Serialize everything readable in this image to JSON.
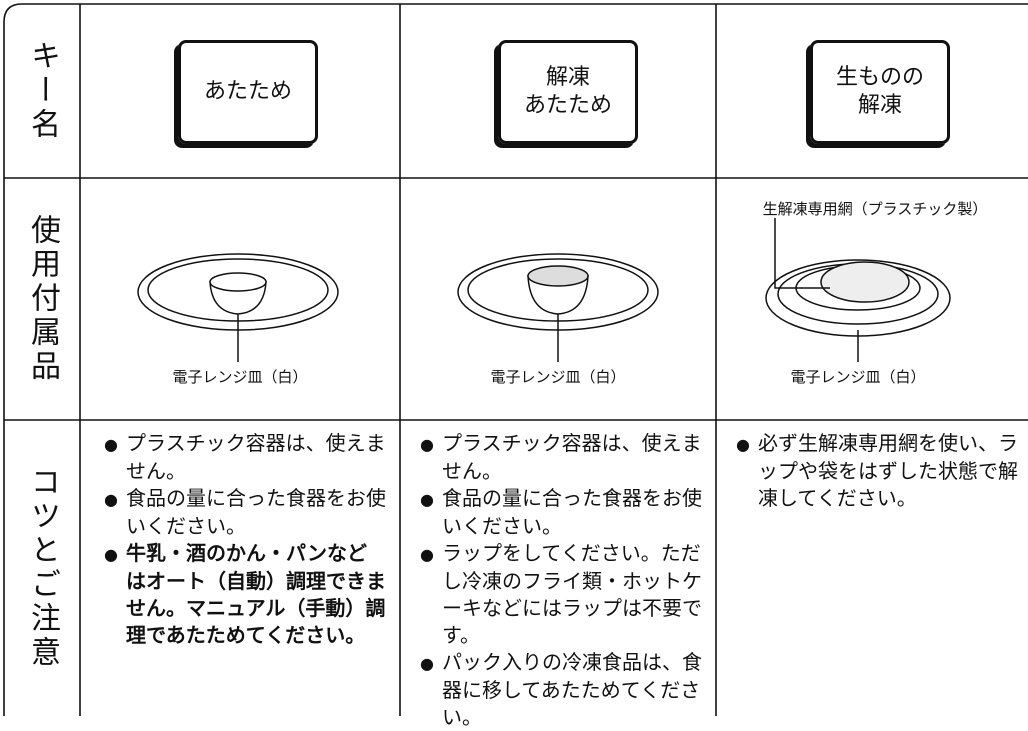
{
  "row_headers": [
    "キー名",
    "使用付属品",
    "コツとご注意"
  ],
  "keys": [
    [
      "あたため"
    ],
    [
      "解凍",
      "あたため"
    ],
    [
      "生ものの",
      "解凍"
    ]
  ],
  "accessories": [
    {
      "label": "電子レンジ皿（白）"
    },
    {
      "label": "電子レンジ皿（白）"
    },
    {
      "label": "電子レンジ皿（白）",
      "extra_label": "生解凍専用網（プラスチック製）"
    }
  ],
  "notes": [
    [
      {
        "text": "プラスチック容器は、使えません。",
        "bold": false
      },
      {
        "text": "食品の量に合った食器をお使いください。",
        "bold": false
      },
      {
        "text": "牛乳・酒のかん・パンなどはオート（自動）調理できません。マニュアル（手動）調理であたためてください。",
        "bold": true
      }
    ],
    [
      {
        "text": "プラスチック容器は、使えません。",
        "bold": false
      },
      {
        "text": "食品の量に合った食器をお使いください。",
        "bold": false
      },
      {
        "text": "ラップをしてください。ただし冷凍のフライ類・ホットケーキなどにはラップは不要です。",
        "bold": false
      },
      {
        "text": "パック入りの冷凍食品は、食器に移してあたためてください。",
        "bold": false
      }
    ],
    [
      {
        "text": "必ず生解凍専用網を使い、ラップや袋をはずした状態で解凍してください。",
        "bold": false
      }
    ]
  ]
}
